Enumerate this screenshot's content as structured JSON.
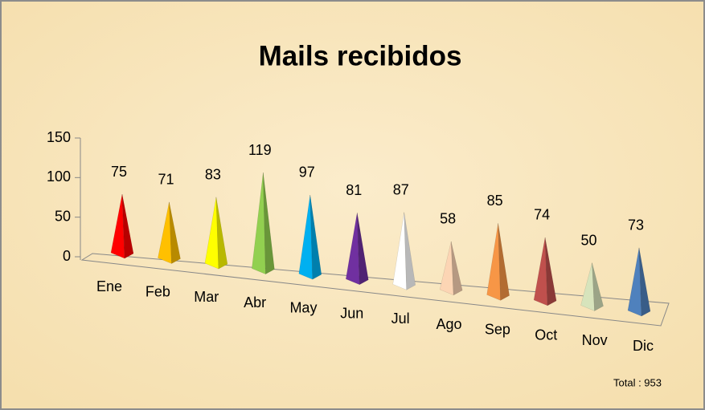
{
  "chart_data": {
    "type": "pyramid",
    "title": "Mails recibidos",
    "categories": [
      "Ene",
      "Feb",
      "Mar",
      "Abr",
      "May",
      "Jun",
      "Jul",
      "Ago",
      "Sep",
      "Oct",
      "Nov",
      "Dic"
    ],
    "values": [
      75,
      71,
      83,
      119,
      97,
      81,
      87,
      58,
      85,
      74,
      50,
      73
    ],
    "colors": [
      "#ff0000",
      "#ffc000",
      "#ffff00",
      "#92d050",
      "#00b0f0",
      "#7030a0",
      "#ffffff",
      "#fcd5b4",
      "#f79646",
      "#c0504d",
      "#d7e4bc",
      "#4f81bd"
    ],
    "ylim": [
      0,
      150
    ],
    "yticks": [
      0,
      50,
      100,
      150
    ],
    "annotation": "Total : 953"
  }
}
